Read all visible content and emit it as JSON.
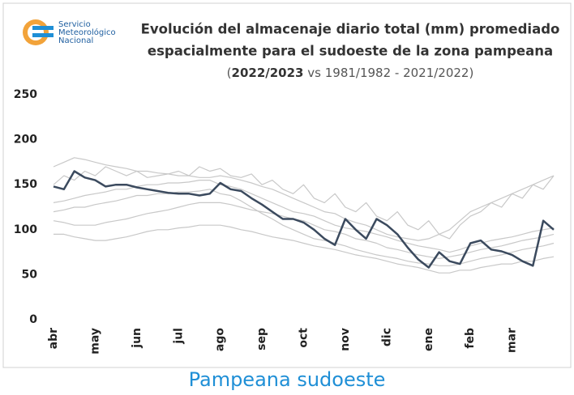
{
  "chart_data": {
    "type": "line",
    "logo": [
      "Servicio",
      "Meteorológico",
      "Nacional"
    ],
    "title": [
      "Evolución del almacenaje diario total (mm) promediado",
      "espacialmente para el sudoeste de la zona pampeana"
    ],
    "subtitle": {
      "open": "(",
      "bold": "2022/2023",
      "rest": " vs 1981/1982 - 2021/2022)"
    },
    "caption": "Pampeana sudoeste",
    "xlim": [
      0,
      12
    ],
    "xticks": [
      {
        "value": 0,
        "label": "abr"
      },
      {
        "value": 1,
        "label": "may"
      },
      {
        "value": 2,
        "label": "jun"
      },
      {
        "value": 3,
        "label": "jul"
      },
      {
        "value": 4,
        "label": "ago"
      },
      {
        "value": 5,
        "label": "sep"
      },
      {
        "value": 6,
        "label": "oct"
      },
      {
        "value": 7,
        "label": "nov"
      },
      {
        "value": 8,
        "label": "dic"
      },
      {
        "value": 9,
        "label": "ene"
      },
      {
        "value": 10,
        "label": "feb"
      },
      {
        "value": 11,
        "label": "mar"
      }
    ],
    "ylim": [
      0,
      250
    ],
    "yticks": [
      0,
      50,
      100,
      150,
      200,
      250
    ],
    "grid": false,
    "x": [
      0,
      0.25,
      0.5,
      0.75,
      1,
      1.25,
      1.5,
      1.75,
      2,
      2.25,
      2.5,
      2.75,
      3,
      3.25,
      3.5,
      3.75,
      4,
      4.25,
      4.5,
      4.75,
      5,
      5.25,
      5.5,
      5.75,
      6,
      6.25,
      6.5,
      6.75,
      7,
      7.25,
      7.5,
      7.75,
      8,
      8.25,
      8.5,
      8.75,
      9,
      9.25,
      9.5,
      9.75,
      10,
      10.25,
      10.5,
      10.75,
      11,
      11.25,
      11.5,
      11.75,
      12
    ],
    "series": [
      {
        "color": "#c8c8c8",
        "values": [
          170,
          175,
          180,
          178,
          175,
          172,
          170,
          168,
          165,
          165,
          163,
          162,
          160,
          160,
          158,
          158,
          160,
          158,
          155,
          152,
          148,
          145,
          140,
          135,
          130,
          125,
          120,
          118,
          112,
          108,
          105,
          100,
          95,
          92,
          90,
          88,
          90,
          95,
          100,
          110,
          120,
          125,
          130,
          135,
          140,
          145,
          150,
          155,
          160
        ]
      },
      {
        "color": "#c8c8c8",
        "values": [
          95,
          95,
          92,
          90,
          88,
          88,
          90,
          92,
          95,
          98,
          100,
          100,
          102,
          103,
          105,
          105,
          105,
          103,
          100,
          98,
          95,
          92,
          90,
          88,
          85,
          82,
          80,
          78,
          75,
          72,
          70,
          68,
          65,
          62,
          60,
          58,
          55,
          52,
          52,
          55,
          55,
          58,
          60,
          62,
          62,
          65,
          65,
          68,
          70
        ]
      },
      {
        "color": "#c8c8c8",
        "values": [
          130,
          132,
          135,
          138,
          140,
          142,
          145,
          145,
          148,
          150,
          150,
          152,
          152,
          153,
          155,
          155,
          150,
          148,
          145,
          140,
          135,
          130,
          125,
          120,
          118,
          115,
          110,
          105,
          102,
          100,
          98,
          95,
          92,
          88,
          85,
          82,
          80,
          78,
          75,
          78,
          82,
          85,
          88,
          90,
          92,
          95,
          98,
          100,
          102
        ]
      },
      {
        "color": "#c8c8c8",
        "values": [
          120,
          122,
          125,
          125,
          128,
          130,
          132,
          135,
          138,
          138,
          140,
          140,
          142,
          142,
          143,
          145,
          140,
          138,
          132,
          125,
          118,
          112,
          105,
          100,
          95,
          90,
          88,
          85,
          82,
          78,
          75,
          72,
          70,
          68,
          65,
          63,
          62,
          60,
          60,
          62,
          65,
          68,
          70,
          72,
          75,
          78,
          80,
          82,
          85
        ]
      },
      {
        "color": "#c8c8c8",
        "values": [
          150,
          160,
          155,
          165,
          160,
          170,
          165,
          160,
          165,
          158,
          160,
          162,
          165,
          160,
          170,
          165,
          168,
          160,
          158,
          162,
          150,
          155,
          145,
          140,
          150,
          135,
          130,
          140,
          125,
          120,
          130,
          115,
          110,
          120,
          105,
          100,
          110,
          95,
          90,
          105,
          115,
          120,
          130,
          125,
          140,
          135,
          150,
          145,
          160
        ]
      },
      {
        "color": "#c8c8c8",
        "values": [
          110,
          108,
          105,
          105,
          105,
          108,
          110,
          112,
          115,
          118,
          120,
          122,
          125,
          128,
          130,
          130,
          130,
          128,
          125,
          122,
          120,
          118,
          115,
          112,
          110,
          105,
          100,
          98,
          95,
          90,
          88,
          85,
          80,
          78,
          75,
          72,
          70,
          68,
          70,
          72,
          75,
          78,
          80,
          82,
          85,
          88,
          90,
          92,
          95
        ]
      },
      {
        "color": "#3b4a5e",
        "values": [
          148,
          145,
          165,
          158,
          155,
          148,
          150,
          150,
          147,
          145,
          143,
          141,
          140,
          140,
          138,
          140,
          152,
          145,
          143,
          135,
          128,
          120,
          112,
          112,
          108,
          100,
          90,
          83,
          112,
          100,
          90,
          112,
          105,
          95,
          80,
          67,
          58,
          75,
          65,
          62,
          85,
          88,
          78,
          76,
          72,
          65,
          60,
          110,
          100
        ]
      }
    ]
  }
}
